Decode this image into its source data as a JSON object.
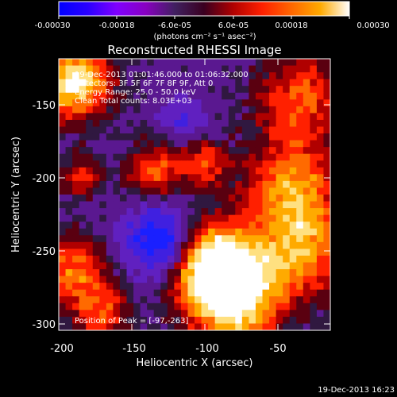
{
  "colorbar": {
    "ticks": [
      "-0.00030",
      "-0.00018",
      "-6.0e-05",
      "6.0e-05",
      "0.00018",
      "0.00030"
    ],
    "unit_label": "(photons cm⁻² s⁻¹ asec⁻²)",
    "colors": [
      "#0000ff",
      "#2a00ff",
      "#8000ff",
      "#8800c0",
      "#402060",
      "#3a0020",
      "#b00000",
      "#ff2000",
      "#ff6600",
      "#ffaa00",
      "#ffffff"
    ]
  },
  "title": "Reconstructed RHESSI Image",
  "info": {
    "line1": "19-Dec-2013 01:01:46.000 to 01:06:32.000",
    "line2": "Detectors: 3F 5F 6F 7F 8F 9F, Att 0",
    "line3": "Energy Range: 25.0 - 50.0 keV",
    "line4": "Clean     Total counts: 8.03E+03"
  },
  "peak": "Position of Peak = [-97,-263]",
  "axes": {
    "xlabel": "Heliocentric X (arcsec)",
    "ylabel": "Heliocentric Y (arcsec)",
    "xticks": [
      "-200",
      "-150",
      "-100",
      "-50"
    ],
    "yticks": [
      "-150",
      "-200",
      "-250",
      "-300"
    ],
    "xlim": [
      -200,
      -14
    ],
    "ylim": [
      -310,
      -124
    ]
  },
  "timestamp": "19-Dec-2013 16:23",
  "image_features": [
    {
      "x": -190,
      "y": -140,
      "level": 1.0,
      "r": 18
    },
    {
      "x": -185,
      "y": -205,
      "level": 0.45,
      "r": 10
    },
    {
      "x": -190,
      "y": -270,
      "level": 0.6,
      "r": 18
    },
    {
      "x": -135,
      "y": -200,
      "level": 0.55,
      "r": 14
    },
    {
      "x": -100,
      "y": -195,
      "level": 0.5,
      "r": 12
    },
    {
      "x": -35,
      "y": -150,
      "level": 0.55,
      "r": 22
    },
    {
      "x": -40,
      "y": -210,
      "level": 0.65,
      "r": 22
    },
    {
      "x": -35,
      "y": -255,
      "level": 0.7,
      "r": 24
    },
    {
      "x": -97,
      "y": -263,
      "level": 1.0,
      "r": 20
    },
    {
      "x": -80,
      "y": -290,
      "level": 0.95,
      "r": 22
    },
    {
      "x": -130,
      "y": -250,
      "level": -0.9,
      "r": 16
    },
    {
      "x": -115,
      "y": -165,
      "level": -0.4,
      "r": 10
    },
    {
      "x": -170,
      "y": -300,
      "level": 0.45,
      "r": 14
    }
  ]
}
